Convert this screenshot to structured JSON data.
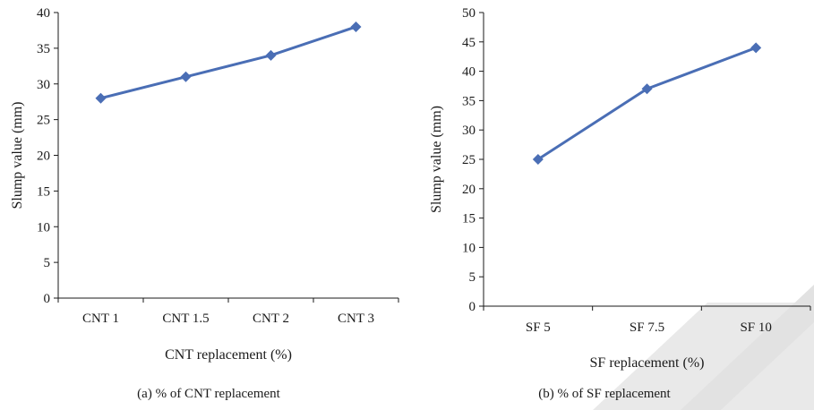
{
  "chart_data": [
    {
      "type": "line",
      "categories": [
        "CNT 1",
        "CNT 1.5",
        "CNT 2",
        "CNT 3"
      ],
      "series": [
        {
          "values": [
            28,
            31,
            34,
            38
          ],
          "color": "#4a6eb5",
          "marker": "diamond"
        }
      ],
      "ylabel": "Slump value (mm)",
      "xlabel": "CNT replacement (%)",
      "ylim": [
        0,
        40
      ],
      "yticks": [
        0,
        5,
        10,
        15,
        20,
        25,
        30,
        35,
        40
      ],
      "caption": "(a) % of CNT replacement",
      "grid": false
    },
    {
      "type": "line",
      "categories": [
        "SF 5",
        "SF 7.5",
        "SF 10"
      ],
      "series": [
        {
          "values": [
            25,
            37,
            44
          ],
          "color": "#4a6eb5",
          "marker": "diamond"
        }
      ],
      "ylabel": "Slump value (mm)",
      "xlabel": "SF replacement (%)",
      "ylim": [
        0,
        50
      ],
      "yticks": [
        0,
        5,
        10,
        15,
        20,
        25,
        30,
        35,
        40,
        45,
        50
      ],
      "caption": "(b) % of SF replacement",
      "grid": false
    }
  ]
}
